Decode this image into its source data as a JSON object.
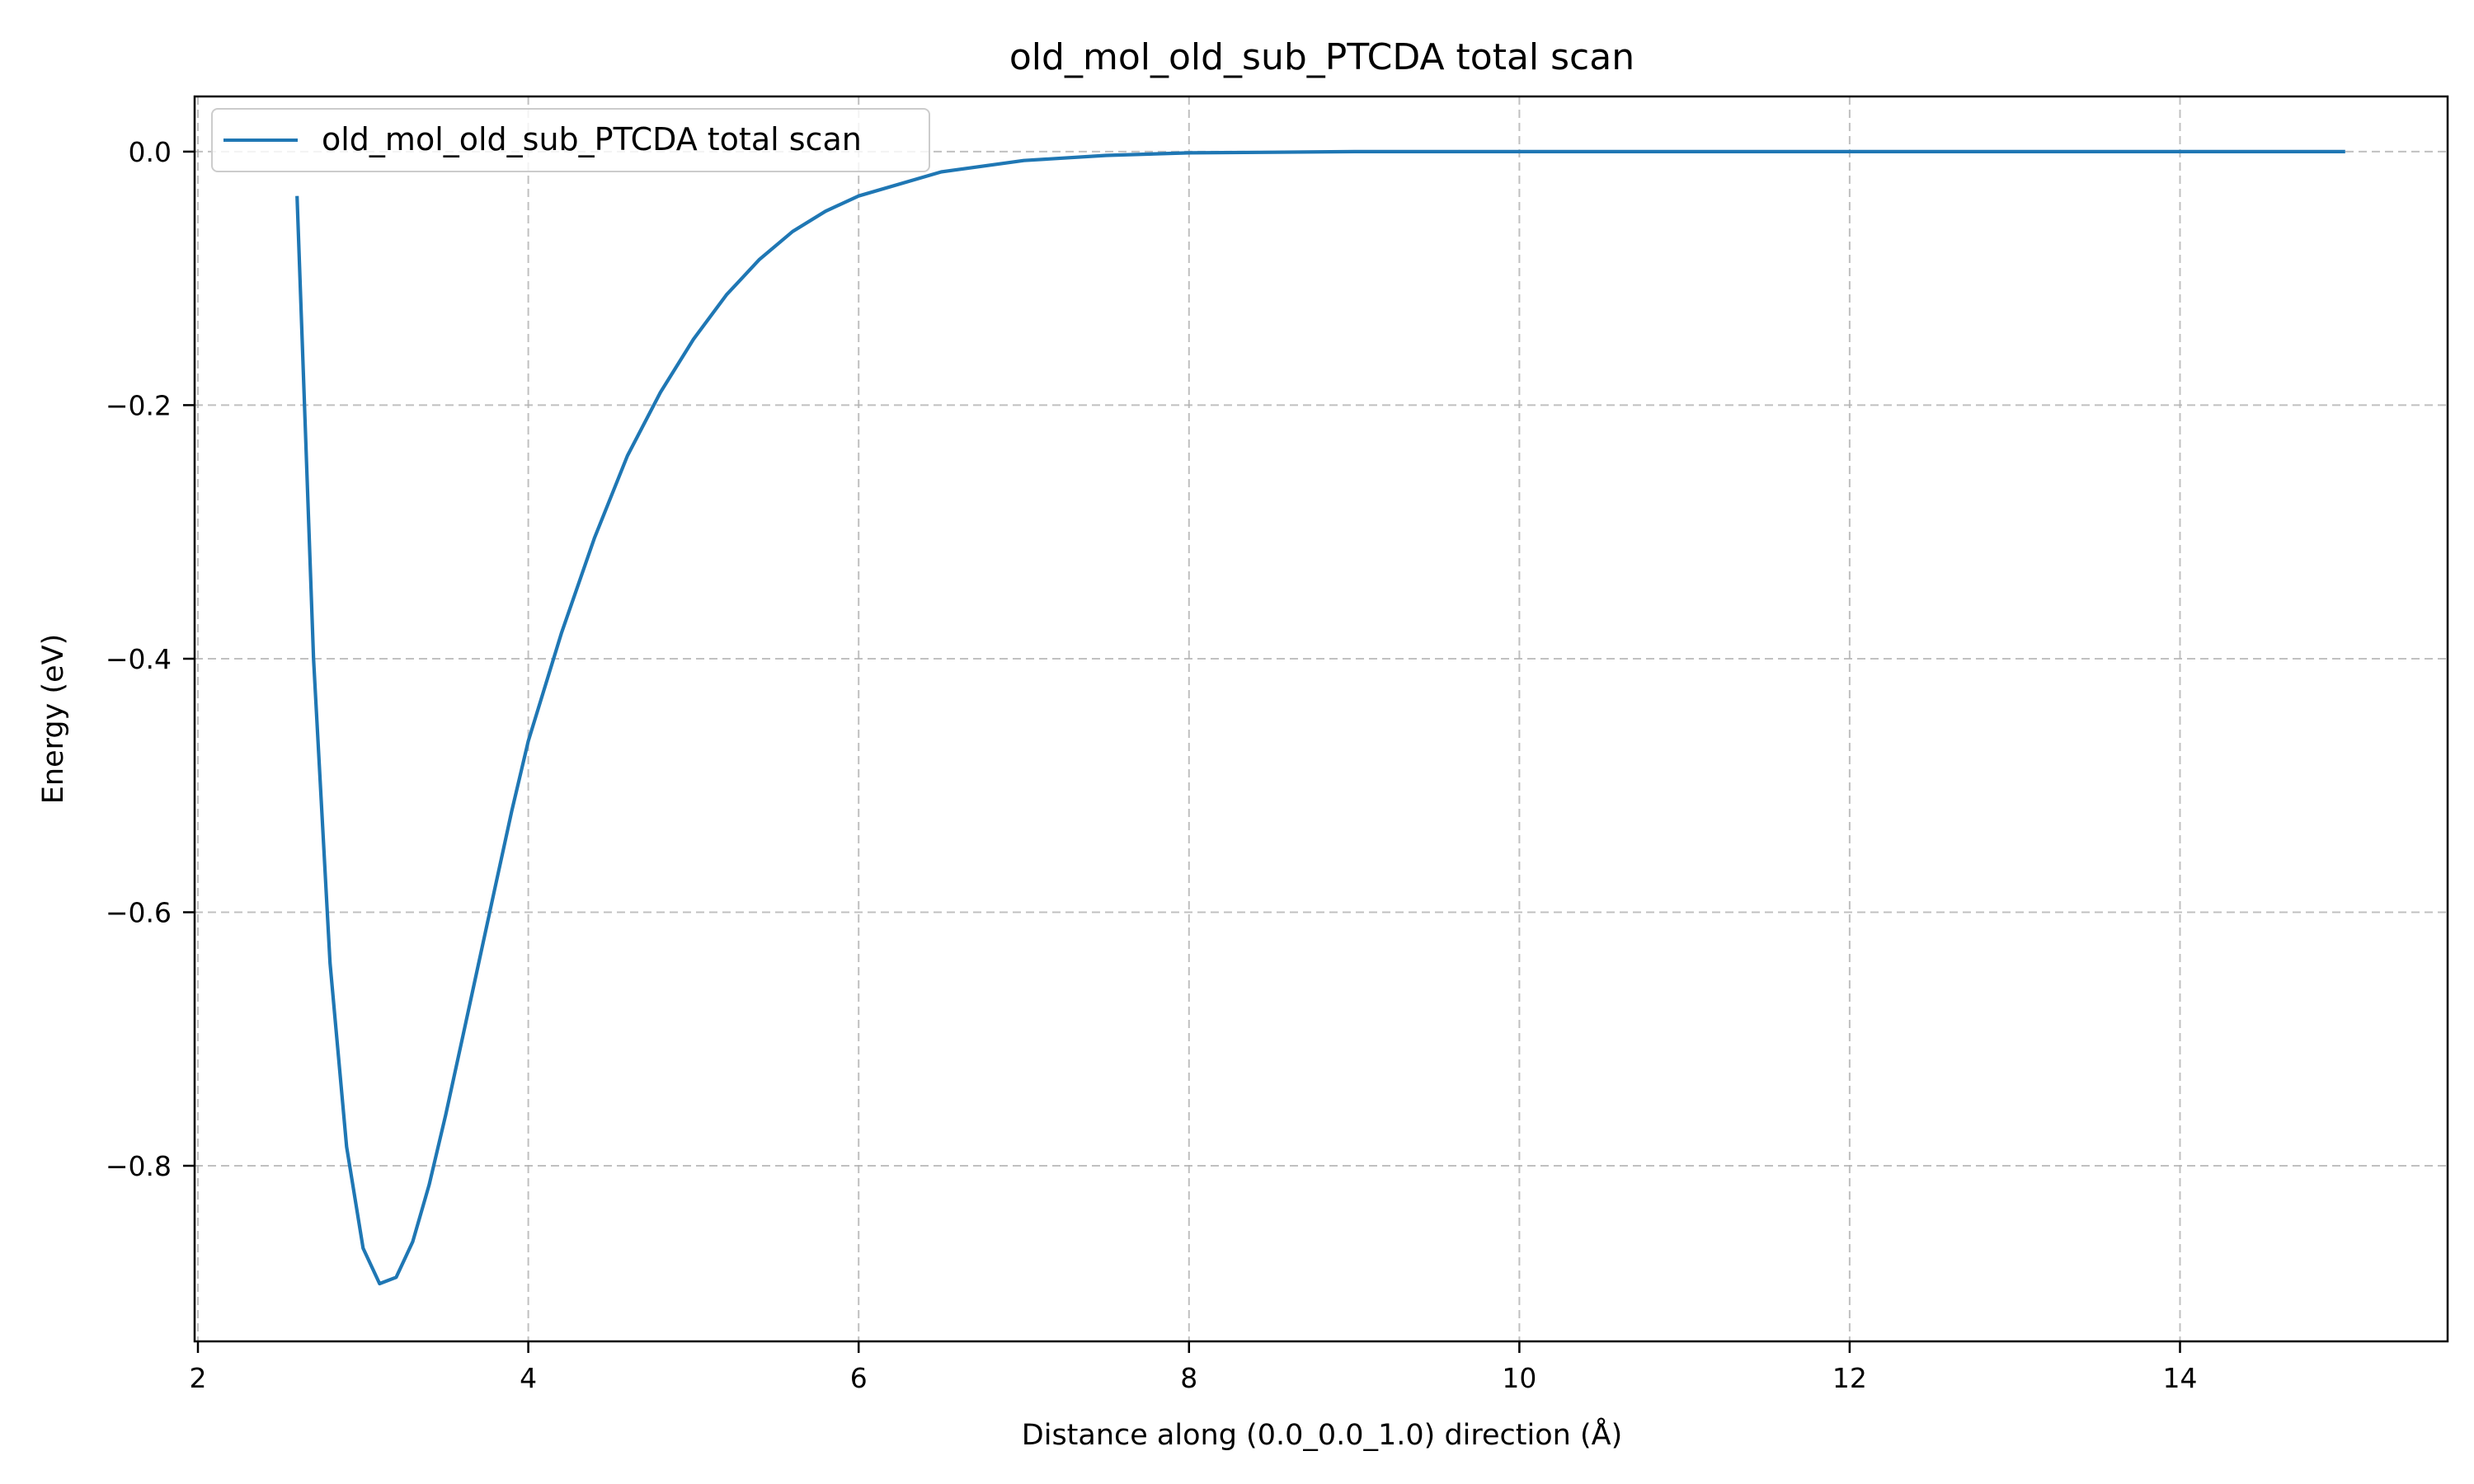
{
  "chart_data": {
    "type": "line",
    "title": "old_mol_old_sub_PTCDA total scan",
    "xlabel": "Distance along (0.0_0.0_1.0) direction (Å)",
    "ylabel": "Energy (eV)",
    "xlim": [
      1.98,
      15.62
    ],
    "ylim": [
      -0.9385,
      0.0435
    ],
    "xticks": [
      2,
      4,
      6,
      8,
      10,
      12,
      14
    ],
    "xtick_labels": [
      "2",
      "4",
      "6",
      "8",
      "10",
      "12",
      "14"
    ],
    "yticks": [
      0.0,
      -0.2,
      -0.4,
      -0.6,
      -0.8
    ],
    "ytick_labels": [
      "0.0",
      "−0.2",
      "−0.4",
      "−0.6",
      "−0.8"
    ],
    "grid": true,
    "legend_position": "top-left",
    "series": [
      {
        "name": "old_mol_old_sub_PTCDA total scan",
        "color": "#1f77b4",
        "x": [
          2.6,
          2.7,
          2.8,
          2.9,
          3.0,
          3.1,
          3.2,
          3.3,
          3.4,
          3.5,
          3.6,
          3.7,
          3.8,
          3.9,
          4.0,
          4.2,
          4.4,
          4.6,
          4.8,
          5.0,
          5.2,
          5.4,
          5.6,
          5.8,
          6.0,
          6.5,
          7.0,
          7.5,
          8.0,
          8.5,
          9.0,
          10.0,
          11.0,
          12.0,
          13.0,
          14.0,
          15.0
        ],
        "y": [
          -0.035,
          -0.4,
          -0.64,
          -0.785,
          -0.865,
          -0.893,
          -0.888,
          -0.86,
          -0.815,
          -0.76,
          -0.7,
          -0.64,
          -0.58,
          -0.52,
          -0.465,
          -0.38,
          -0.305,
          -0.24,
          -0.19,
          -0.148,
          -0.113,
          -0.085,
          -0.063,
          -0.047,
          -0.035,
          -0.016,
          -0.007,
          -0.003,
          -0.001,
          -0.0005,
          0.0,
          0.0,
          0.0,
          0.0,
          0.0,
          0.0,
          0.0
        ]
      }
    ]
  }
}
